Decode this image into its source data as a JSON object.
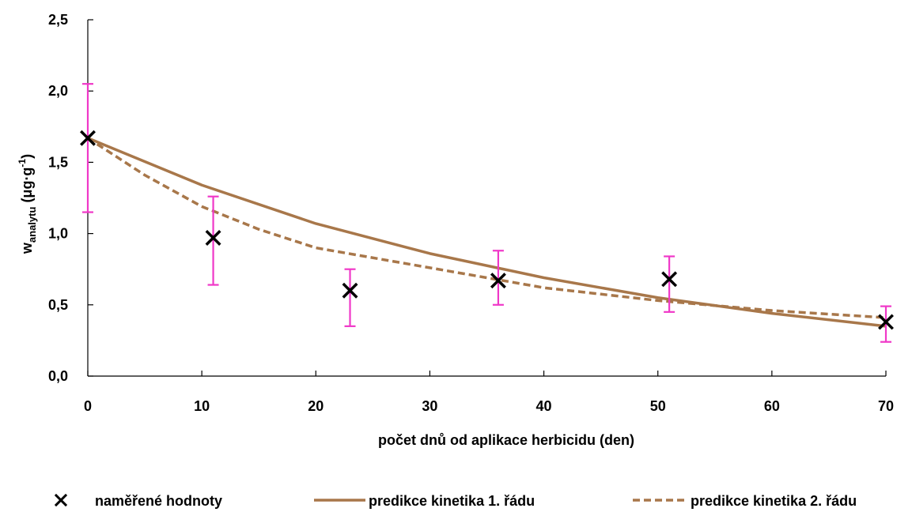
{
  "chart_data": {
    "type": "scatter",
    "xlabel": "počet dnů od aplikace herbicidu (den)",
    "ylabel": {
      "main": "w",
      "subscript": "analytu",
      "unit_open": " (μg·g",
      "unit_sup": "-1",
      "unit_close": ")"
    },
    "xlim": [
      0,
      70
    ],
    "ylim": [
      0,
      2.5
    ],
    "x_ticks": [
      {
        "value": 0,
        "label": "0"
      },
      {
        "value": 10,
        "label": "10"
      },
      {
        "value": 20,
        "label": "20"
      },
      {
        "value": 30,
        "label": "30"
      },
      {
        "value": 40,
        "label": "40"
      },
      {
        "value": 50,
        "label": "50"
      },
      {
        "value": 60,
        "label": "60"
      },
      {
        "value": 70,
        "label": "70"
      }
    ],
    "y_ticks": [
      {
        "value": 0,
        "label": "0,0"
      },
      {
        "value": 0.5,
        "label": "0,5"
      },
      {
        "value": 1.0,
        "label": "1,0"
      },
      {
        "value": 1.5,
        "label": "1,5"
      },
      {
        "value": 2.0,
        "label": "2,0"
      },
      {
        "value": 2.5,
        "label": "2,5"
      }
    ],
    "grid": false,
    "legend_position": "bottom",
    "series": [
      {
        "name": "naměřené hodnoty",
        "kind": "markers",
        "marker": "x",
        "color": "#000000",
        "error_color": "#f038c8",
        "points": [
          {
            "x": 0,
            "y": 1.67,
            "err_low": 1.15,
            "err_high": 2.05
          },
          {
            "x": 11,
            "y": 0.97,
            "err_low": 0.64,
            "err_high": 1.26
          },
          {
            "x": 23,
            "y": 0.6,
            "err_low": 0.35,
            "err_high": 0.75
          },
          {
            "x": 36,
            "y": 0.67,
            "err_low": 0.5,
            "err_high": 0.88
          },
          {
            "x": 51,
            "y": 0.68,
            "err_low": 0.45,
            "err_high": 0.84
          },
          {
            "x": 70,
            "y": 0.38,
            "err_low": 0.24,
            "err_high": 0.49
          }
        ]
      },
      {
        "name": "predikce kinetika 1. řádu",
        "kind": "line",
        "dash": "solid",
        "color": "#a8774a",
        "points": [
          {
            "x": 0,
            "y": 1.67
          },
          {
            "x": 10,
            "y": 1.34
          },
          {
            "x": 20,
            "y": 1.07
          },
          {
            "x": 30,
            "y": 0.86
          },
          {
            "x": 40,
            "y": 0.69
          },
          {
            "x": 50,
            "y": 0.55
          },
          {
            "x": 60,
            "y": 0.44
          },
          {
            "x": 70,
            "y": 0.35
          }
        ]
      },
      {
        "name": "predikce kinetika 2. řádu",
        "kind": "line",
        "dash": "dashed",
        "color": "#a8774a",
        "points": [
          {
            "x": 0,
            "y": 1.67
          },
          {
            "x": 5,
            "y": 1.41
          },
          {
            "x": 10,
            "y": 1.19
          },
          {
            "x": 15,
            "y": 1.03
          },
          {
            "x": 20,
            "y": 0.9
          },
          {
            "x": 30,
            "y": 0.76
          },
          {
            "x": 40,
            "y": 0.62
          },
          {
            "x": 50,
            "y": 0.53
          },
          {
            "x": 60,
            "y": 0.46
          },
          {
            "x": 70,
            "y": 0.41
          }
        ]
      }
    ]
  }
}
